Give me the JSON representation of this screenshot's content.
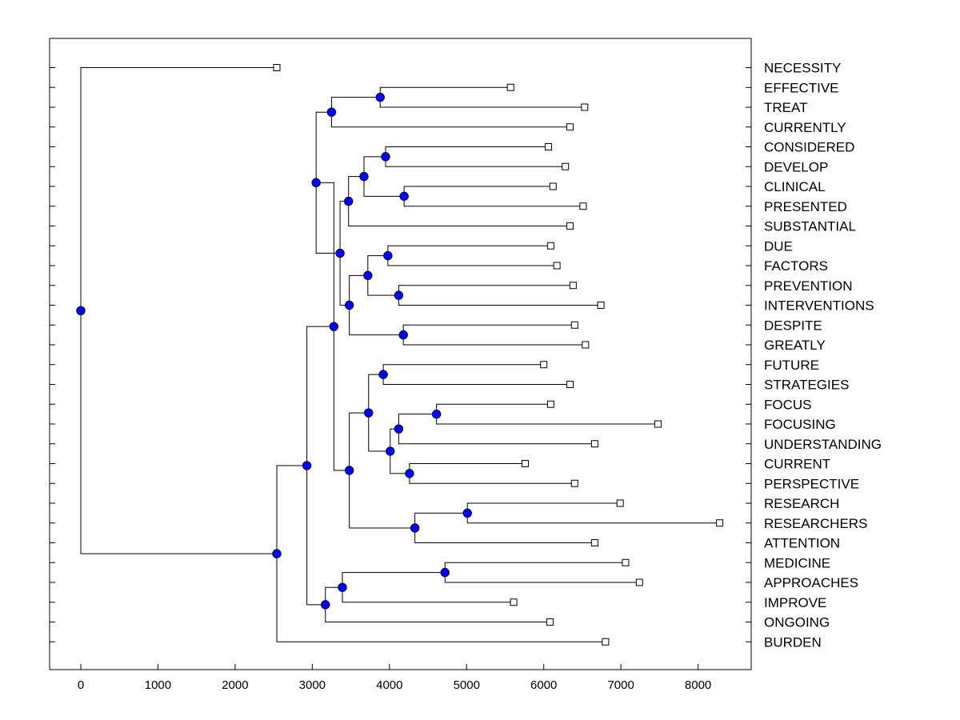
{
  "chart_data": {
    "type": "dendrogram",
    "title": "",
    "xlabel": "",
    "ylabel": "",
    "xlim": [
      -400,
      8700
    ],
    "x_ticks": [
      0,
      1000,
      2000,
      3000,
      4000,
      5000,
      6000,
      7000,
      8000
    ],
    "leaves": [
      {
        "label": "NECESSITY",
        "x": 2540
      },
      {
        "label": "EFFECTIVE",
        "x": 5570
      },
      {
        "label": "TREAT",
        "x": 6530
      },
      {
        "label": "CURRENTLY",
        "x": 6340
      },
      {
        "label": "CONSIDERED",
        "x": 6060
      },
      {
        "label": "DEVELOP",
        "x": 6280
      },
      {
        "label": "CLINICAL",
        "x": 6120
      },
      {
        "label": "PRESENTED",
        "x": 6510
      },
      {
        "label": "SUBSTANTIAL",
        "x": 6340
      },
      {
        "label": "DUE",
        "x": 6090
      },
      {
        "label": "FACTORS",
        "x": 6170
      },
      {
        "label": "PREVENTION",
        "x": 6380
      },
      {
        "label": "INTERVENTIONS",
        "x": 6740
      },
      {
        "label": "DESPITE",
        "x": 6400
      },
      {
        "label": "GREATLY",
        "x": 6540
      },
      {
        "label": "FUTURE",
        "x": 6000
      },
      {
        "label": "STRATEGIES",
        "x": 6340
      },
      {
        "label": "FOCUS",
        "x": 6090
      },
      {
        "label": "FOCUSING",
        "x": 7480
      },
      {
        "label": "UNDERSTANDING",
        "x": 6660
      },
      {
        "label": "CURRENT",
        "x": 5760
      },
      {
        "label": "PERSPECTIVE",
        "x": 6400
      },
      {
        "label": "RESEARCH",
        "x": 6990
      },
      {
        "label": "RESEARCHERS",
        "x": 8280
      },
      {
        "label": "ATTENTION",
        "x": 6660
      },
      {
        "label": "MEDICINE",
        "x": 7060
      },
      {
        "label": "APPROACHES",
        "x": 7240
      },
      {
        "label": "IMPROVE",
        "x": 5610
      },
      {
        "label": "ONGOING",
        "x": 6080
      },
      {
        "label": "BURDEN",
        "x": 6800
      }
    ],
    "merges": [
      {
        "x": 3880,
        "children": [
          "L1",
          "L2"
        ]
      },
      {
        "x": 3250,
        "children": [
          "N0",
          "L3"
        ]
      },
      {
        "x": 3950,
        "children": [
          "L4",
          "L5"
        ]
      },
      {
        "x": 4190,
        "children": [
          "L6",
          "L7"
        ]
      },
      {
        "x": 3670,
        "children": [
          "N2",
          "N3"
        ]
      },
      {
        "x": 3470,
        "children": [
          "N4",
          "L8"
        ]
      },
      {
        "x": 3980,
        "children": [
          "L9",
          "L10"
        ]
      },
      {
        "x": 4120,
        "children": [
          "L11",
          "L12"
        ]
      },
      {
        "x": 3720,
        "children": [
          "N6",
          "N7"
        ]
      },
      {
        "x": 4180,
        "children": [
          "L13",
          "L14"
        ]
      },
      {
        "x": 3480,
        "children": [
          "N8",
          "N9"
        ]
      },
      {
        "x": 3360,
        "children": [
          "N5",
          "N10"
        ]
      },
      {
        "x": 3050,
        "children": [
          "N1",
          "N11"
        ]
      },
      {
        "x": 3920,
        "children": [
          "L15",
          "L16"
        ]
      },
      {
        "x": 4610,
        "children": [
          "L17",
          "L18"
        ]
      },
      {
        "x": 4120,
        "children": [
          "N14",
          "L19"
        ]
      },
      {
        "x": 4260,
        "children": [
          "L20",
          "L21"
        ]
      },
      {
        "x": 4010,
        "children": [
          "N15",
          "N16"
        ]
      },
      {
        "x": 3730,
        "children": [
          "N13",
          "N17"
        ]
      },
      {
        "x": 5010,
        "children": [
          "L22",
          "L23"
        ]
      },
      {
        "x": 4330,
        "children": [
          "N19",
          "L24"
        ]
      },
      {
        "x": 3480,
        "children": [
          "N18",
          "N20"
        ]
      },
      {
        "x": 3280,
        "children": [
          "N12",
          "N21"
        ]
      },
      {
        "x": 4720,
        "children": [
          "L25",
          "L26"
        ]
      },
      {
        "x": 3390,
        "children": [
          "N23",
          "L27"
        ]
      },
      {
        "x": 3170,
        "children": [
          "N24",
          "L28"
        ]
      },
      {
        "x": 2930,
        "children": [
          "N22",
          "N25"
        ]
      },
      {
        "x": 2540,
        "children": [
          "N26",
          "L29"
        ]
      },
      {
        "x": 0,
        "children": [
          "L0",
          "N27"
        ]
      }
    ],
    "colors": {
      "node_fill": "#0000ff",
      "node_stroke": "#000033",
      "line": "#000000",
      "leaf_fill": "#ffffff"
    }
  }
}
